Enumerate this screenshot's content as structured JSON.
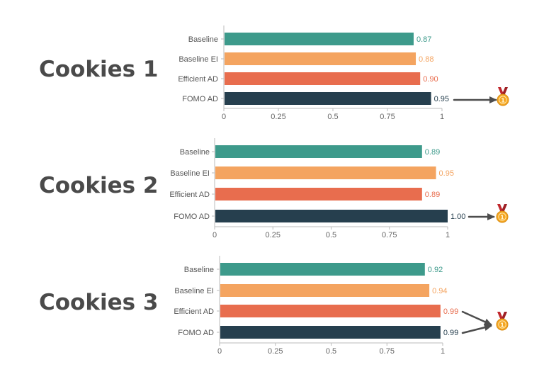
{
  "chart_data": [
    {
      "type": "bar",
      "orientation": "horizontal",
      "title": "Cookies 1",
      "categories": [
        "Baseline",
        "Baseline EI",
        "Efficient AD",
        "FOMO AD"
      ],
      "values": [
        0.87,
        0.88,
        0.9,
        0.95
      ],
      "value_labels": [
        "0.87",
        "0.88",
        "0.90",
        "0.95"
      ],
      "xlim": [
        0,
        1
      ],
      "xticks": [
        "0",
        "0.25",
        "0.5",
        "0.75",
        "1"
      ],
      "grid": false,
      "winner": [
        "FOMO AD"
      ]
    },
    {
      "type": "bar",
      "orientation": "horizontal",
      "title": "Cookies 2",
      "categories": [
        "Baseline",
        "Baseline EI",
        "Efficient AD",
        "FOMO AD"
      ],
      "values": [
        0.89,
        0.95,
        0.89,
        1.0
      ],
      "value_labels": [
        "0.89",
        "0.95",
        "0.89",
        "1.00"
      ],
      "xlim": [
        0,
        1
      ],
      "xticks": [
        "0",
        "0.25",
        "0.5",
        "0.75",
        "1"
      ],
      "grid": false,
      "winner": [
        "FOMO AD"
      ]
    },
    {
      "type": "bar",
      "orientation": "horizontal",
      "title": "Cookies 3",
      "categories": [
        "Baseline",
        "Baseline EI",
        "Efficient AD",
        "FOMO AD"
      ],
      "values": [
        0.92,
        0.94,
        0.99,
        0.99
      ],
      "value_labels": [
        "0.92",
        "0.94",
        "0.99",
        "0.99"
      ],
      "xlim": [
        0,
        1
      ],
      "xticks": [
        "0",
        "0.25",
        "0.5",
        "0.75",
        "1"
      ],
      "grid": false,
      "winner": [
        "Efficient AD",
        "FOMO AD"
      ]
    }
  ],
  "colors": {
    "Baseline": "#3d9a8b",
    "Baseline EI": "#f4a460",
    "Efficient AD": "#e86d4e",
    "FOMO AD": "#263f4e",
    "arrow": "#4d4d4d",
    "medal_gold": "#f5a623",
    "medal_ribbon": "#c0272d"
  },
  "medal_icon": "first-place-medal-icon",
  "medal_rank": "1"
}
